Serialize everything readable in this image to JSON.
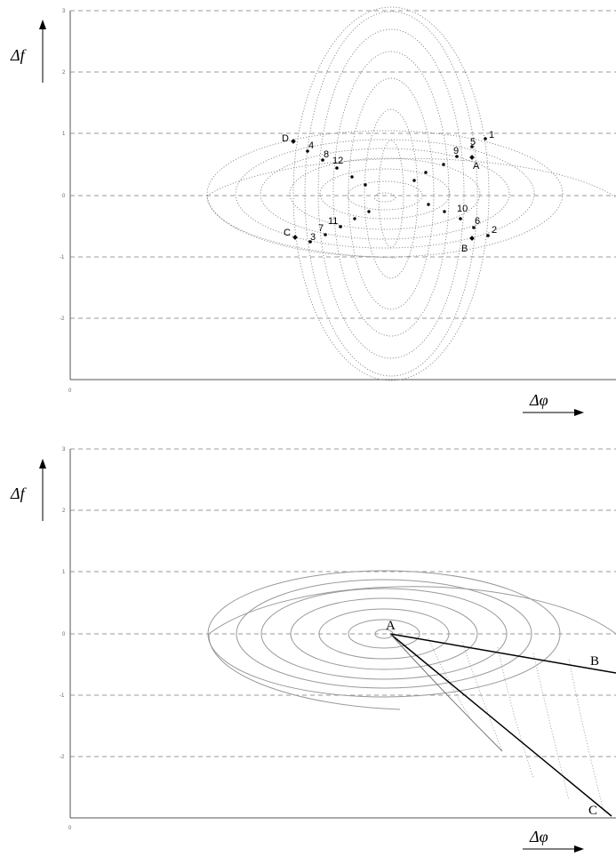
{
  "panel_top": {
    "y_tick_labels": [
      "3",
      "2",
      "1",
      "0",
      "-1",
      "-2"
    ],
    "x_origin_label": "0",
    "y_axis_symbol": "Δf",
    "x_axis_symbol": "Δφ",
    "corner_labels": [
      "A",
      "B",
      "C",
      "D"
    ],
    "numbered_labels": [
      "1",
      "2",
      "3",
      "4",
      "5",
      "6",
      "7",
      "8",
      "9",
      "10",
      "11",
      "12"
    ]
  },
  "panel_bottom": {
    "y_tick_labels": [
      "3",
      "2",
      "1",
      "0",
      "-1",
      "-2"
    ],
    "x_origin_label": "0",
    "y_axis_symbol": "Δf",
    "x_axis_symbol": "Δφ",
    "vertex_labels": [
      "A",
      "B",
      "C"
    ]
  }
}
